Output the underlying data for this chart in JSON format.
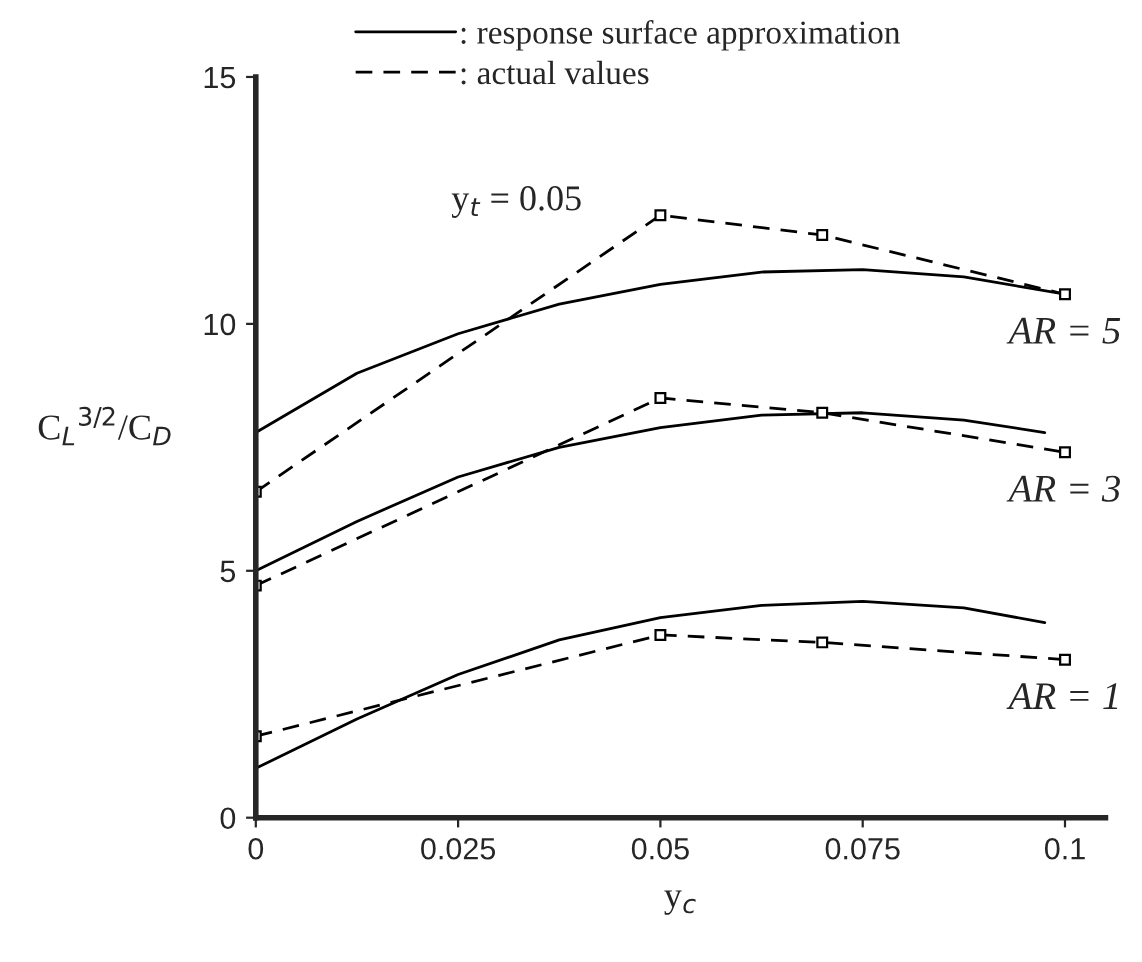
{
  "chart_data": {
    "type": "line",
    "xlabel": "y$_{c}$",
    "ylabel": "C$_{L}$$^{3/2}$/C$_{D}$",
    "xlim": [
      0,
      0.105
    ],
    "xticks": [
      0,
      0.025,
      0.05,
      0.075,
      0.1
    ],
    "ylim": [
      0,
      15
    ],
    "yticks": [
      0,
      5,
      10,
      15
    ],
    "grid": false,
    "legend": "top",
    "series": [
      {
        "name": ": response surface approximation",
        "color": "#000000",
        "line_style": "solid",
        "marker": "none",
        "x": [
          0,
          0.0125,
          0.025,
          0.0375,
          0.05,
          0.0625,
          0.075,
          0.0875,
          0.1
        ],
        "values": [
          7.8,
          9.0,
          9.8,
          10.4,
          10.8,
          11.05,
          11.1,
          10.95,
          10.6
        ]
      },
      {
        "name": ": actual values",
        "color": "#000000",
        "line_style": "dashed",
        "marker": "square",
        "x": [
          0,
          0.05,
          0.07,
          0.1
        ],
        "values": [
          6.6,
          12.2,
          11.8,
          10.6
        ]
      },
      {
        "color": "#000000",
        "line_style": "solid",
        "marker": "none",
        "x": [
          0,
          0.0125,
          0.025,
          0.0375,
          0.05,
          0.0625,
          0.075,
          0.0875,
          0.0975
        ],
        "values": [
          5.0,
          6.0,
          6.9,
          7.5,
          7.9,
          8.15,
          8.2,
          8.05,
          7.8
        ]
      },
      {
        "color": "#000000",
        "line_style": "dashed",
        "marker": "square",
        "x": [
          0,
          0.05,
          0.07,
          0.1
        ],
        "values": [
          4.7,
          8.5,
          8.2,
          7.4
        ]
      },
      {
        "color": "#000000",
        "line_style": "solid",
        "marker": "none",
        "x": [
          0,
          0.0125,
          0.025,
          0.0375,
          0.05,
          0.0625,
          0.075,
          0.0875,
          0.0975
        ],
        "values": [
          1.0,
          2.0,
          2.9,
          3.6,
          4.05,
          4.3,
          4.38,
          4.25,
          3.95
        ]
      },
      {
        "color": "#000000",
        "line_style": "dashed",
        "marker": "square",
        "x": [
          0,
          0.05,
          0.07,
          0.1
        ],
        "values": [
          1.65,
          3.7,
          3.55,
          3.2
        ]
      }
    ],
    "annotations": [
      {
        "text": "y$_{t}$ = 0.05"
      },
      "AR = 5",
      "AR = 3",
      "AR = 1"
    ]
  }
}
